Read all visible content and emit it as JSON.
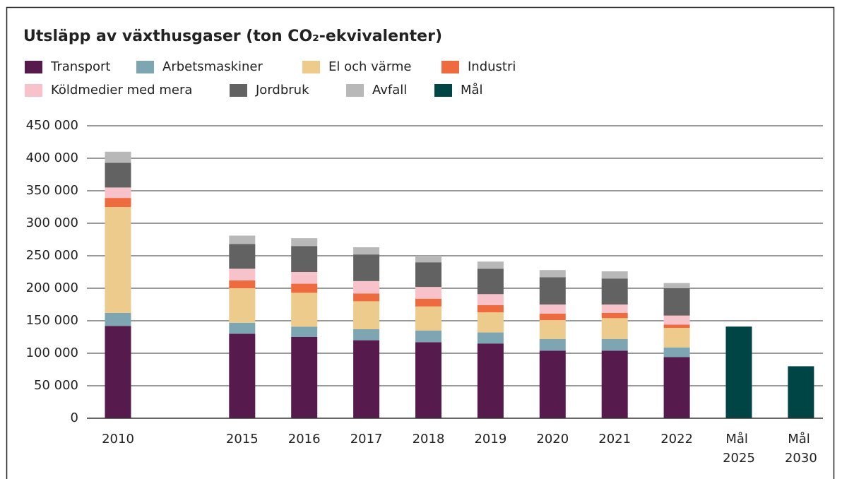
{
  "chart_data": {
    "type": "stacked_bar",
    "title": "Utsläpp av växthusgaser (ton CO₂-ekvivalenter)",
    "categories": [
      "2010",
      null,
      "2015",
      "2016",
      "2017",
      "2018",
      "2019",
      "2020",
      "2021",
      "2022",
      "Mål 2025",
      "Mål 2030"
    ],
    "series": [
      {
        "name": "Transport",
        "color": "#561a4c",
        "values": [
          142000,
          null,
          130000,
          125000,
          120000,
          117000,
          115000,
          104000,
          104000,
          94000,
          null,
          null
        ]
      },
      {
        "name": "Arbetsmaskiner",
        "color": "#7ea6b2",
        "values": [
          20000,
          null,
          17000,
          16000,
          17000,
          18000,
          17000,
          18000,
          18000,
          15000,
          null,
          null
        ]
      },
      {
        "name": "El och värme",
        "color": "#eccb8c",
        "values": [
          163000,
          null,
          53000,
          52000,
          43000,
          37000,
          31000,
          29000,
          32000,
          30000,
          null,
          null
        ]
      },
      {
        "name": "Industri",
        "color": "#ee6a3f",
        "values": [
          14000,
          null,
          12000,
          14000,
          12000,
          12000,
          11000,
          10000,
          8000,
          5000,
          null,
          null
        ]
      },
      {
        "name": "Köldmedier med mera",
        "color": "#f8c2ca",
        "values": [
          16000,
          null,
          18000,
          18000,
          19000,
          18000,
          17000,
          14000,
          13000,
          14000,
          null,
          null
        ]
      },
      {
        "name": "Jordbruk",
        "color": "#626262",
        "values": [
          38000,
          null,
          38000,
          40000,
          41000,
          38000,
          39000,
          42000,
          40000,
          42000,
          null,
          null
        ]
      },
      {
        "name": "Avfall",
        "color": "#b8b8b8",
        "values": [
          17000,
          null,
          13000,
          12000,
          11000,
          10000,
          11000,
          11000,
          11000,
          8000,
          null,
          null
        ]
      },
      {
        "name": "Mål",
        "color": "#004546",
        "values": [
          null,
          null,
          null,
          null,
          null,
          null,
          null,
          null,
          null,
          null,
          141000,
          80000
        ]
      }
    ],
    "ylim": [
      0,
      450000
    ],
    "yticks": [
      0,
      {
        "value": 50000,
        "label": "50 000"
      },
      {
        "value": 100000,
        "label": "100 000"
      },
      {
        "value": 150000,
        "label": "150 000"
      },
      {
        "value": 200000,
        "label": "200 000"
      },
      {
        "value": 250000,
        "label": "250 000"
      },
      {
        "value": 300000,
        "label": "300 000"
      },
      {
        "value": 350000,
        "label": "350 000"
      },
      {
        "value": 400000,
        "label": "400 000"
      },
      {
        "value": 450000,
        "label": "450 000"
      }
    ],
    "grid": true
  }
}
